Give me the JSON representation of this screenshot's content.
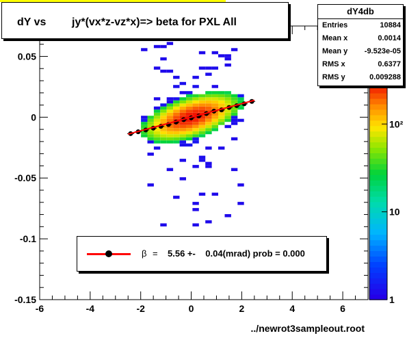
{
  "title": {
    "part1": "dY vs",
    "part2": "jy*(vx*z-vz*x)=> beta  for PXL All"
  },
  "stats": {
    "name": "dY4db",
    "rows": [
      {
        "key": "Entries",
        "value": "10884"
      },
      {
        "key": "Mean x",
        "value": "0.0014"
      },
      {
        "key": "Mean y",
        "value": "-9.523e-05"
      },
      {
        "key": "RMS x",
        "value": "0.6377"
      },
      {
        "key": "RMS y",
        "value": "0.009288"
      }
    ]
  },
  "legend": {
    "symbol": "β",
    "equals": "=",
    "text": "5.56 +-    0.04(mrad) prob = 0.000"
  },
  "x_axis_title": "../newrot3sampleout.root",
  "colors": {
    "fit_line": "#ff0000",
    "markers": "#000000",
    "background_strip": "#ffff00"
  },
  "chart_data": {
    "type": "heatmap",
    "xlim": [
      -6,
      7
    ],
    "ylim": [
      -0.15,
      0.075
    ],
    "x_ticks": [
      -6,
      -4,
      -2,
      0,
      2,
      4,
      6
    ],
    "x_tick_labels": [
      "-6",
      "-4",
      "-2",
      "0",
      "2",
      "4",
      "6"
    ],
    "y_ticks": [
      -0.15,
      -0.1,
      -0.05,
      0,
      0.05
    ],
    "y_tick_labels": [
      "-0.15",
      "-0.1",
      "-0.05",
      "0",
      "0.05"
    ],
    "z_scale": "log",
    "z_tick_labels": [
      "1",
      "10",
      "10²"
    ],
    "xlabel": "../newrot3sampleout.root",
    "grid": false,
    "fit": {
      "slope": 0.00556,
      "intercept": 0.0,
      "x_range": [
        -2.5,
        2.5
      ],
      "color": "#ff0000"
    },
    "profile_points": {
      "x": [
        -2.4,
        -2.1,
        -1.8,
        -1.5,
        -1.2,
        -0.9,
        -0.6,
        -0.3,
        0.0,
        0.3,
        0.6,
        0.9,
        1.2,
        1.5,
        1.8,
        2.1,
        2.4
      ],
      "y": [
        -0.0135,
        -0.012,
        -0.0105,
        -0.009,
        -0.0075,
        -0.006,
        -0.004,
        -0.002,
        -0.0005,
        0.001,
        0.003,
        0.005,
        0.006,
        0.008,
        0.0095,
        0.011,
        0.013
      ]
    }
  }
}
